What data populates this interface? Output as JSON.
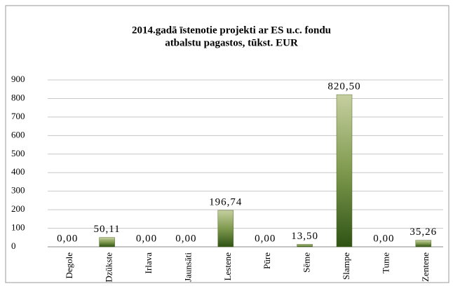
{
  "chart_data": {
    "type": "bar",
    "title": [
      "2014.gadā īstenotie projekti ar ES u.c. fondu",
      "atbalstu pagastos, tūkst. EUR"
    ],
    "categories": [
      "Degole",
      "Dzūkste",
      "Irlava",
      "Jaunsāti",
      "Lestene",
      "Pūre",
      "Sēme",
      "Slampe",
      "Tume",
      "Zentene"
    ],
    "values": [
      0,
      50.11,
      0,
      0,
      196.74,
      0,
      13.5,
      820.5,
      0,
      35.26
    ],
    "value_labels": [
      "0,00",
      "50,11",
      "0,00",
      "0,00",
      "196,74",
      "0,00",
      "13,50",
      "820,50",
      "0,00",
      "35,26"
    ],
    "color": "#4f6b2a",
    "ylim": [
      0,
      900
    ],
    "yticks": [
      0,
      100,
      200,
      300,
      400,
      500,
      600,
      700,
      800,
      900
    ],
    "grid": true
  }
}
